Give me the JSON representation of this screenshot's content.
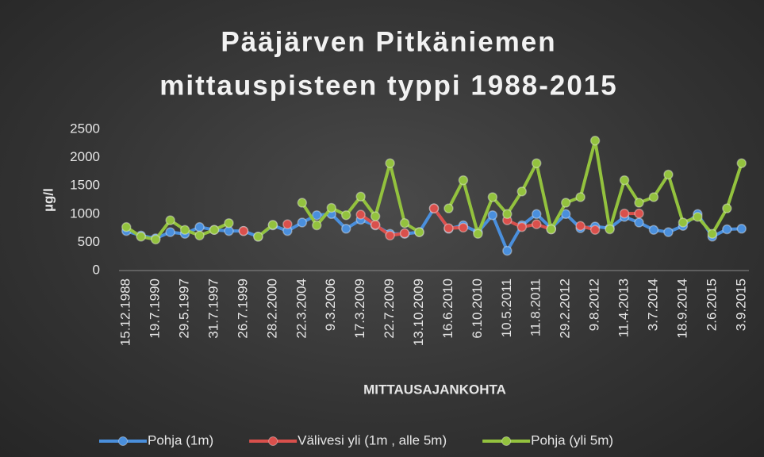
{
  "chart_data": {
    "type": "line",
    "title": [
      "Pääjärven Pitkäniemen",
      "mittauspisteen typpi 1988-2015"
    ],
    "xlabel": "MITTAUSAJANKOHTA",
    "ylabel": "µg/l",
    "categories": [
      "15.12.1988",
      null,
      "19.7.1990",
      null,
      "29.5.1997",
      null,
      "31.7.1997",
      null,
      "26.7.1999",
      null,
      "28.2.2000",
      null,
      "22.3.2004",
      null,
      "9.3.2006",
      null,
      "17.3.2009",
      null,
      "22.7.2009",
      null,
      "13.10.2009",
      null,
      "16.6.2010",
      null,
      "6.10.2010",
      null,
      "10.5.2011",
      null,
      "11.8.2011",
      null,
      "29.2.2012",
      null,
      "9.8.2012",
      null,
      "11.4.2013",
      null,
      "3.7.2014",
      null,
      "18.9.2014",
      null,
      "2.6.2015",
      null,
      "3.9.2015"
    ],
    "series": [
      {
        "name": "Pohja (1m)",
        "color": "#4a8fdc",
        "values": [
          700,
          620,
          570,
          680,
          650,
          770,
          720,
          700,
          700,
          600,
          800,
          700,
          850,
          980,
          1000,
          740,
          900,
          800,
          650,
          650,
          680,
          1100,
          740,
          800,
          680,
          980,
          350,
          800,
          1000,
          750,
          1000,
          750,
          780,
          750,
          950,
          850,
          720,
          680,
          790,
          1000,
          600,
          730,
          740
        ]
      },
      {
        "name": "Välivesi yli (1m , alle 5m)",
        "color": "#d9504c",
        "values": [
          null,
          null,
          null,
          null,
          null,
          null,
          null,
          null,
          700,
          null,
          null,
          820,
          null,
          null,
          null,
          null,
          990,
          810,
          620,
          660,
          null,
          1100,
          750,
          760,
          null,
          null,
          890,
          770,
          820,
          730,
          null,
          790,
          720,
          null,
          1010,
          1010,
          null,
          null,
          null,
          null,
          null,
          null,
          null
        ]
      },
      {
        "name": "Pohja (yli 5m)",
        "color": "#93c23e",
        "values": [
          770,
          600,
          550,
          890,
          720,
          620,
          720,
          840,
          null,
          600,
          810,
          null,
          1200,
          800,
          1110,
          980,
          1310,
          960,
          1900,
          840,
          680,
          null,
          1100,
          1600,
          650,
          1300,
          1000,
          1400,
          1900,
          730,
          1200,
          1300,
          2300,
          730,
          1600,
          1200,
          1300,
          1700,
          850,
          950,
          650,
          1100,
          1900
        ]
      }
    ],
    "ylim": [
      0,
      2500
    ],
    "yticks": [
      0,
      500,
      1000,
      1500,
      2000,
      2500
    ],
    "grid": false,
    "legend": "bottom"
  }
}
